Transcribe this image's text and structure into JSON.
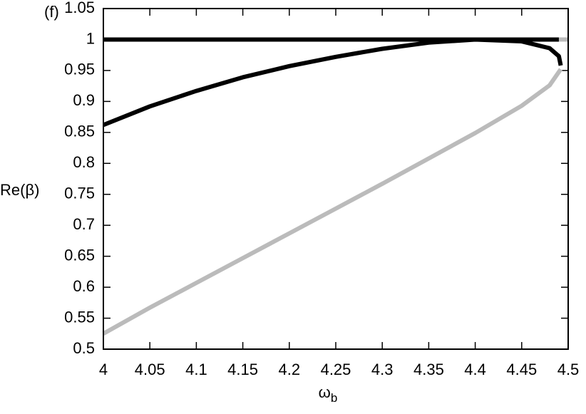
{
  "chart_data": {
    "type": "line",
    "annotation": "(f)",
    "ylabel": "Re(β)",
    "xlabel": {
      "main": "ω",
      "sub": "b"
    },
    "xlim": [
      4,
      4.5
    ],
    "ylim": [
      0.5,
      1.05
    ],
    "xticks": [
      4,
      4.05,
      4.1,
      4.15,
      4.2,
      4.25,
      4.3,
      4.35,
      4.4,
      4.45,
      4.5
    ],
    "yticks": [
      0.5,
      0.55,
      0.6,
      0.65,
      0.7,
      0.75,
      0.8,
      0.85,
      0.9,
      0.95,
      1,
      1.05
    ],
    "series": [
      {
        "color": "#000000",
        "x": [
          4,
          4.49
        ],
        "values": [
          1,
          1
        ]
      },
      {
        "color": "#bbbbbb",
        "x": [
          4.49,
          4.5
        ],
        "values": [
          1,
          1
        ]
      },
      {
        "color": "#000000",
        "x": [
          4,
          4.05,
          4.1,
          4.15,
          4.2,
          4.25,
          4.3,
          4.35,
          4.4,
          4.45,
          4.48,
          4.49,
          4.492
        ],
        "values": [
          0.862,
          0.892,
          0.917,
          0.939,
          0.957,
          0.972,
          0.985,
          0.995,
          1.0,
          0.997,
          0.986,
          0.973,
          0.958
        ]
      },
      {
        "color": "#bbbbbb",
        "x": [
          4,
          4.05,
          4.1,
          4.15,
          4.2,
          4.25,
          4.3,
          4.35,
          4.4,
          4.45,
          4.48,
          4.492
        ],
        "values": [
          0.525,
          0.567,
          0.607,
          0.647,
          0.687,
          0.727,
          0.767,
          0.808,
          0.849,
          0.893,
          0.926,
          0.952
        ]
      }
    ]
  }
}
